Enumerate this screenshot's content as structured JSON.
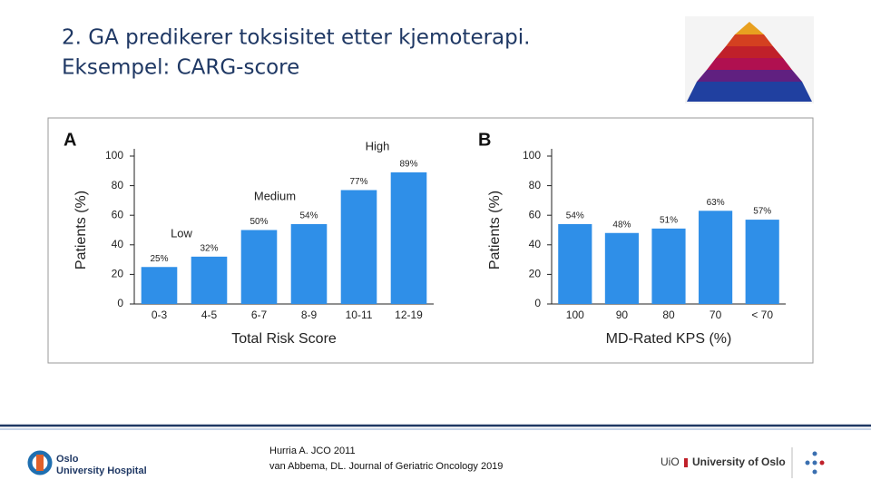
{
  "title_line1": "2. GA predikerer toksisitet etter kjemoterapi.",
  "title_line2": "Eksempel: CARG-score",
  "chart_data": [
    {
      "type": "bar",
      "panel": "A",
      "ylabel": "Patients (%)",
      "xlabel": "Total Risk Score",
      "categories": [
        "0-3",
        "4-5",
        "6-7",
        "8-9",
        "10-11",
        "12-19"
      ],
      "values": [
        25,
        32,
        50,
        54,
        77,
        89
      ],
      "value_labels": [
        "25%",
        "32%",
        "50%",
        "54%",
        "77%",
        "89%"
      ],
      "annotations": [
        "Low",
        "Medium",
        "High"
      ],
      "color": "#2f8fe8",
      "ylim": [
        0,
        100
      ],
      "yticks": [
        0,
        20,
        40,
        60,
        80,
        100
      ]
    },
    {
      "type": "bar",
      "panel": "B",
      "ylabel": "Patients (%)",
      "xlabel": "MD-Rated KPS (%)",
      "categories": [
        "100",
        "90",
        "80",
        "70",
        "< 70"
      ],
      "values": [
        54,
        48,
        51,
        63,
        57
      ],
      "value_labels": [
        "54%",
        "48%",
        "51%",
        "63%",
        "57%"
      ],
      "color": "#2f8fe8",
      "ylim": [
        0,
        100
      ],
      "yticks": [
        0,
        20,
        40,
        60,
        80,
        100
      ]
    }
  ],
  "footer": {
    "citation_line1": "Hurria A. JCO 2011",
    "citation_line2": "van Abbema, DL. Journal of Geriatric Oncology 2019",
    "logo_left_line1": "Oslo",
    "logo_left_line2": "University Hospital",
    "logo_right_short": "UiO",
    "logo_right_name": "University of Oslo"
  }
}
